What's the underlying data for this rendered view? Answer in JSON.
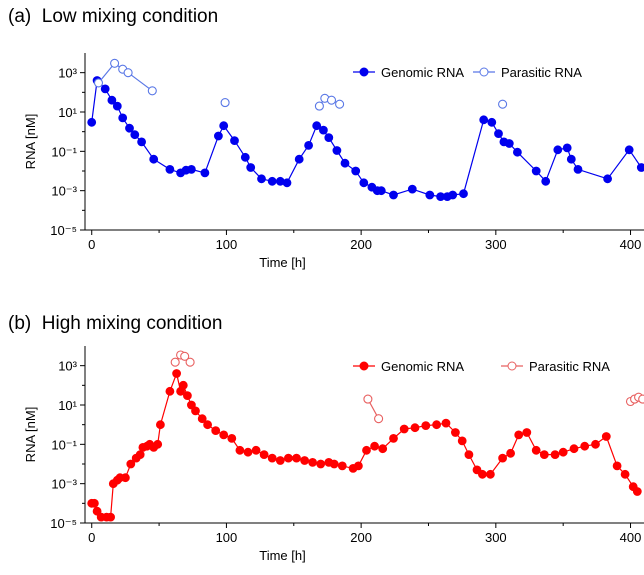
{
  "panels": [
    {
      "label": "(a)",
      "title": "Low mixing condition"
    },
    {
      "label": "(b)",
      "title": "High mixing condition"
    }
  ],
  "chart_data": [
    {
      "type": "scatter",
      "title": "Low mixing condition",
      "xlabel": "Time [h]",
      "ylabel": "RNA [nM]",
      "xlim": [
        -5,
        410
      ],
      "ylim": [
        1e-05,
        10000
      ],
      "yscale": "log",
      "xticks": [
        0,
        100,
        200,
        300,
        400
      ],
      "xtick_labels": [
        "0",
        "100",
        "200",
        "300",
        "400"
      ],
      "yticks": [
        1e-05,
        0.001,
        0.1,
        10,
        1000
      ],
      "ytick_labels": [
        "10⁻⁵",
        "10⁻³",
        "10⁻¹",
        "10¹",
        "10³"
      ],
      "legend_position": "top-right",
      "series": [
        {
          "name": "Genomic RNA",
          "color": "#0000ee",
          "marker": "filled-circle",
          "segments": [
            [
              [
                0,
                3
              ],
              [
                4,
                400
              ],
              [
                10,
                150
              ],
              [
                15,
                40
              ],
              [
                19,
                20
              ],
              [
                23,
                5
              ],
              [
                28,
                1.5
              ],
              [
                32,
                0.7
              ],
              [
                37,
                0.3
              ],
              [
                46,
                0.04
              ],
              [
                58,
                0.012
              ],
              [
                66,
                0.008
              ],
              [
                70,
                0.011
              ],
              [
                74,
                0.012
              ],
              [
                84,
                0.008
              ],
              [
                94,
                0.6
              ],
              [
                98,
                2
              ],
              [
                106,
                0.35
              ],
              [
                114,
                0.05
              ],
              [
                118,
                0.015
              ],
              [
                126,
                0.004
              ],
              [
                134,
                0.003
              ],
              [
                140,
                0.003
              ],
              [
                145,
                0.0025
              ],
              [
                154,
                0.04
              ],
              [
                161,
                0.2
              ],
              [
                167,
                2
              ],
              [
                172,
                1.2
              ],
              [
                176,
                0.5
              ],
              [
                182,
                0.11
              ],
              [
                188,
                0.025
              ],
              [
                196,
                0.01
              ],
              [
                202,
                0.0025
              ],
              [
                208,
                0.0015
              ],
              [
                212,
                0.001
              ],
              [
                215,
                0.001
              ],
              [
                224,
                0.0006
              ],
              [
                238,
                0.0012
              ],
              [
                251,
                0.0006
              ],
              [
                259,
                0.0005
              ],
              [
                264,
                0.0005
              ],
              [
                268,
                0.0006
              ],
              [
                276,
                0.0007
              ],
              [
                291,
                4
              ],
              [
                297,
                3
              ],
              [
                302,
                0.8
              ],
              [
                306,
                0.3
              ],
              [
                310,
                0.25
              ],
              [
                316,
                0.09
              ],
              [
                330,
                0.01
              ],
              [
                337,
                0.003
              ],
              [
                346,
                0.12
              ],
              [
                353,
                0.15
              ],
              [
                356,
                0.04
              ],
              [
                361,
                0.012
              ],
              [
                383,
                0.004
              ],
              [
                399,
                0.12
              ],
              [
                408,
                0.015
              ]
            ]
          ]
        },
        {
          "name": "Parasitic RNA",
          "color": "#5a78e6",
          "marker": "open-circle",
          "segments": [
            [
              [
                5,
                300
              ],
              [
                17,
                3000
              ],
              [
                23,
                1500
              ],
              [
                27,
                1000
              ],
              [
                45,
                120
              ]
            ],
            [
              [
                99,
                30
              ]
            ],
            [
              [
                169,
                20
              ],
              [
                173,
                50
              ],
              [
                178,
                40
              ],
              [
                184,
                25
              ]
            ],
            [
              [
                305,
                25
              ]
            ]
          ]
        }
      ]
    },
    {
      "type": "scatter",
      "title": "High mixing condition",
      "xlabel": "Time [h]",
      "ylabel": "RNA [nM]",
      "xlim": [
        -5,
        410
      ],
      "ylim": [
        1e-05,
        10000
      ],
      "yscale": "log",
      "xticks": [
        0,
        100,
        200,
        300,
        400
      ],
      "xtick_labels": [
        "0",
        "100",
        "200",
        "300",
        "400"
      ],
      "yticks": [
        1e-05,
        0.001,
        0.1,
        10,
        1000
      ],
      "ytick_labels": [
        "10⁻⁵",
        "10⁻³",
        "10⁻¹",
        "10¹",
        "10³"
      ],
      "legend_position": "top-right",
      "series": [
        {
          "name": "Genomic RNA",
          "color": "#ff0000",
          "marker": "filled-circle",
          "segments": [
            [
              [
                0,
                0.0001
              ],
              [
                2,
                0.0001
              ],
              [
                4,
                4e-05
              ],
              [
                7,
                2e-05
              ],
              [
                11,
                2e-05
              ],
              [
                14,
                2e-05
              ],
              [
                16,
                0.001
              ],
              [
                19,
                0.0015
              ],
              [
                21,
                0.002
              ],
              [
                25,
                0.002
              ],
              [
                29,
                0.01
              ],
              [
                33,
                0.02
              ],
              [
                36,
                0.03
              ],
              [
                38,
                0.07
              ],
              [
                41,
                0.08
              ],
              [
                43,
                0.1
              ],
              [
                46,
                0.07
              ],
              [
                49,
                0.1
              ],
              [
                51,
                1
              ],
              [
                58,
                50
              ],
              [
                63,
                400
              ],
              [
                66,
                50
              ],
              [
                68,
                100
              ],
              [
                71,
                30
              ],
              [
                74,
                10
              ],
              [
                77,
                5
              ],
              [
                82,
                2
              ],
              [
                86,
                1
              ],
              [
                92,
                0.5
              ],
              [
                98,
                0.3
              ],
              [
                104,
                0.2
              ],
              [
                110,
                0.05
              ],
              [
                116,
                0.04
              ],
              [
                122,
                0.05
              ],
              [
                128,
                0.03
              ],
              [
                134,
                0.02
              ],
              [
                140,
                0.015
              ],
              [
                146,
                0.02
              ],
              [
                152,
                0.02
              ],
              [
                158,
                0.015
              ],
              [
                164,
                0.012
              ],
              [
                170,
                0.01
              ],
              [
                176,
                0.012
              ],
              [
                180,
                0.01
              ],
              [
                186,
                0.008
              ],
              [
                194,
                0.006
              ],
              [
                198,
                0.008
              ],
              [
                204,
                0.05
              ],
              [
                210,
                0.08
              ],
              [
                216,
                0.06
              ],
              [
                224,
                0.2
              ],
              [
                232,
                0.6
              ],
              [
                240,
                0.7
              ],
              [
                248,
                0.9
              ],
              [
                256,
                1
              ],
              [
                263,
                1.2
              ],
              [
                270,
                0.4
              ],
              [
                275,
                0.15
              ],
              [
                280,
                0.03
              ],
              [
                286,
                0.005
              ],
              [
                290,
                0.003
              ],
              [
                296,
                0.003
              ],
              [
                305,
                0.02
              ],
              [
                311,
                0.035
              ],
              [
                317,
                0.3
              ],
              [
                323,
                0.4
              ],
              [
                330,
                0.05
              ],
              [
                336,
                0.03
              ],
              [
                344,
                0.03
              ],
              [
                350,
                0.04
              ],
              [
                358,
                0.06
              ],
              [
                366,
                0.08
              ],
              [
                374,
                0.1
              ],
              [
                382,
                0.25
              ],
              [
                390,
                0.008
              ],
              [
                396,
                0.003
              ],
              [
                402,
                0.0007
              ],
              [
                405,
                0.0004
              ]
            ]
          ]
        },
        {
          "name": "Parasitic RNA",
          "color": "#e86060",
          "marker": "open-circle",
          "segments": [
            [
              [
                62,
                1500
              ],
              [
                66,
                3500
              ],
              [
                69,
                3000
              ],
              [
                73,
                1500
              ]
            ],
            [
              [
                205,
                20
              ],
              [
                213,
                2
              ]
            ],
            [
              [
                400,
                15
              ],
              [
                403,
                20
              ],
              [
                406,
                25
              ],
              [
                409,
                20
              ]
            ]
          ]
        }
      ]
    }
  ]
}
